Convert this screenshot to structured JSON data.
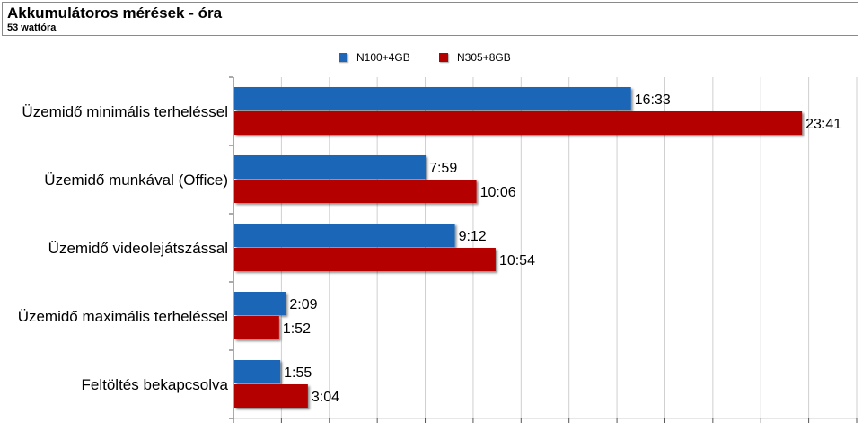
{
  "header": {
    "title": "Akkumulátoros mérések - óra",
    "subtitle": "53 wattóra"
  },
  "colors": {
    "series_1": "#1f66b8",
    "series_2": "#b50000",
    "grid": "#cfcfcf",
    "axis": "#555555"
  },
  "chart_data": {
    "type": "bar",
    "orientation": "horizontal",
    "title": "Akkumulátoros mérések - óra",
    "subtitle": "53 wattóra",
    "unit": "hours",
    "categories": [
      "Üzemidő minimális terheléssel",
      "Üzemidő munkával (Office)",
      "Üzemidő videolejátszással",
      "Üzemidő maximális terheléssel",
      "Feltöltés bekapcsolva"
    ],
    "series": [
      {
        "name": "N100+4GB",
        "values": [
          16.55,
          7.983,
          9.2,
          2.15,
          1.917
        ],
        "labels": [
          "16:33",
          "7:59",
          "9:12",
          "2:09",
          "1:55"
        ]
      },
      {
        "name": "N305+8GB",
        "values": [
          23.683,
          10.1,
          10.9,
          1.867,
          3.067
        ],
        "labels": [
          "23:41",
          "10:06",
          "10:54",
          "1:52",
          "3:04"
        ]
      }
    ],
    "xlim": [
      0,
      26
    ],
    "grid": true,
    "legend_position": "top"
  }
}
